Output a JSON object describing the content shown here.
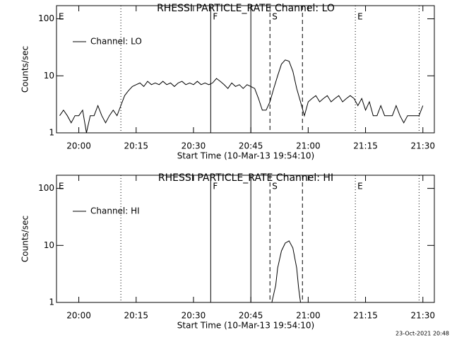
{
  "chart_data": [
    {
      "type": "line",
      "title": "RHESSI PARTICLE_RATE Channel: LO",
      "x_label": "Start Time (10-Mar-13 19:54:10)",
      "y_label": "Counts/sec",
      "log_y": true,
      "ylim": [
        1,
        170
      ],
      "yticks": [
        1,
        10,
        100
      ],
      "xlim": [
        "19:54:10",
        "21:33"
      ],
      "xticks": [
        "20:00",
        "20:15",
        "20:30",
        "20:45",
        "21:00",
        "21:15",
        "21:30"
      ],
      "legend": "upper left",
      "markers": [
        {
          "x": "19:54:10",
          "label": "E",
          "style": "none"
        },
        {
          "x": "20:11",
          "style": "dotted"
        },
        {
          "x": "20:34:30",
          "label": "F",
          "style": "solid"
        },
        {
          "x": "20:45",
          "style": "solid"
        },
        {
          "x": "20:50",
          "label": "S",
          "style": "dashed"
        },
        {
          "x": "20:58:30",
          "style": "dashed"
        },
        {
          "x": "21:12:20",
          "label": "E",
          "style": "dotted"
        },
        {
          "x": "21:29",
          "style": "dotted"
        }
      ],
      "x": [
        "19:55",
        "19:56",
        "19:57",
        "19:58",
        "19:59",
        "20:00",
        "20:01",
        "20:02",
        "20:03",
        "20:04",
        "20:05",
        "20:06",
        "20:07",
        "20:08",
        "20:09",
        "20:10",
        "20:11",
        "20:12",
        "20:13",
        "20:14",
        "20:15",
        "20:16",
        "20:17",
        "20:18",
        "20:19",
        "20:20",
        "20:21",
        "20:22",
        "20:23",
        "20:24",
        "20:25",
        "20:26",
        "20:27",
        "20:28",
        "20:29",
        "20:30",
        "20:31",
        "20:32",
        "20:33",
        "20:34",
        "20:35",
        "20:36",
        "20:37",
        "20:38",
        "20:39",
        "20:40",
        "20:41",
        "20:42",
        "20:43",
        "20:44",
        "20:45",
        "20:46",
        "20:47",
        "20:48",
        "20:49",
        "20:50",
        "20:51",
        "20:52",
        "20:53",
        "20:54",
        "20:55",
        "20:56",
        "20:57",
        "20:58",
        "20:59",
        "21:00",
        "21:01",
        "21:02",
        "21:03",
        "21:04",
        "21:05",
        "21:06",
        "21:07",
        "21:08",
        "21:09",
        "21:10",
        "21:11",
        "21:12",
        "21:13",
        "21:14",
        "21:15",
        "21:16",
        "21:17",
        "21:18",
        "21:19",
        "21:20",
        "21:21",
        "21:22",
        "21:23",
        "21:24",
        "21:25",
        "21:26",
        "21:27",
        "21:28",
        "21:29",
        "21:30"
      ],
      "series": [
        {
          "name": "Channel: LO",
          "color": "#000000",
          "values": [
            2,
            2.5,
            2,
            1.5,
            2,
            2,
            2.5,
            1,
            2,
            2,
            3,
            2,
            1.5,
            2,
            2.5,
            2,
            3,
            4.5,
            5.5,
            6.5,
            7,
            7.5,
            6.5,
            8,
            7,
            7.5,
            7,
            8,
            7,
            7.5,
            6.5,
            7.5,
            8,
            7,
            7.5,
            7,
            8,
            7,
            7.5,
            7,
            7.5,
            9,
            8,
            7,
            6,
            7.5,
            6.5,
            7,
            6,
            7,
            6.5,
            6,
            4,
            2.5,
            2.5,
            3.5,
            6,
            10,
            16,
            19,
            18,
            12,
            6,
            3.5,
            2,
            3.5,
            4,
            4.5,
            3.5,
            4,
            4.5,
            3.5,
            4,
            4.5,
            3.5,
            4,
            4.5,
            4,
            3,
            4,
            2.5,
            3.5,
            2,
            2,
            3,
            2,
            2,
            2,
            3,
            2,
            1.5,
            2,
            2,
            2,
            2,
            3
          ]
        }
      ]
    },
    {
      "type": "line",
      "title": "RHESSI PARTICLE_RATE Channel: HI",
      "x_label": "Start Time (10-Mar-13 19:54:10)",
      "y_label": "Counts/sec",
      "log_y": true,
      "ylim": [
        1,
        170
      ],
      "yticks": [
        1,
        10,
        100
      ],
      "xlim": [
        "19:54:10",
        "21:33"
      ],
      "xticks": [
        "20:00",
        "20:15",
        "20:30",
        "20:45",
        "21:00",
        "21:15",
        "21:30"
      ],
      "legend": "upper left",
      "markers": [
        {
          "x": "19:54:10",
          "label": "E",
          "style": "none"
        },
        {
          "x": "20:11",
          "style": "dotted"
        },
        {
          "x": "20:34:30",
          "label": "F",
          "style": "solid"
        },
        {
          "x": "20:45",
          "style": "solid"
        },
        {
          "x": "20:50",
          "label": "S",
          "style": "dashed"
        },
        {
          "x": "20:58:30",
          "style": "dashed"
        },
        {
          "x": "21:12:20",
          "label": "E",
          "style": "dotted"
        },
        {
          "x": "21:29",
          "style": "dotted"
        }
      ],
      "x": [
        "20:50:30",
        "20:51:30",
        "20:52",
        "20:53",
        "20:54",
        "20:55",
        "20:56",
        "20:57",
        "20:57:30",
        "20:58"
      ],
      "series": [
        {
          "name": "Channel: HI",
          "color": "#000000",
          "values": [
            1,
            2,
            4,
            8,
            11,
            12,
            9,
            4,
            1.8,
            1
          ]
        }
      ]
    }
  ],
  "timestamp": "23-Oct-2021 20:48"
}
